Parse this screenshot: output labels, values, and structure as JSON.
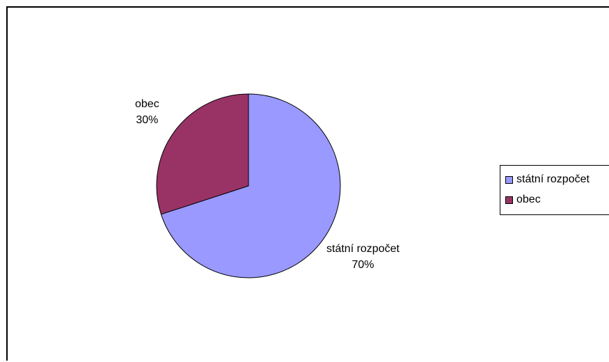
{
  "chart_data": {
    "type": "pie",
    "title": "",
    "slices": [
      {
        "label": "státní rozpočet",
        "value": 70,
        "percent_label": "70%",
        "color": "#9999FF"
      },
      {
        "label": "obec",
        "value": 30,
        "percent_label": "30%",
        "color": "#993366"
      }
    ],
    "legend": {
      "placement": "right",
      "entries": [
        "státní rozpočet",
        "obec"
      ]
    },
    "grid": false
  }
}
